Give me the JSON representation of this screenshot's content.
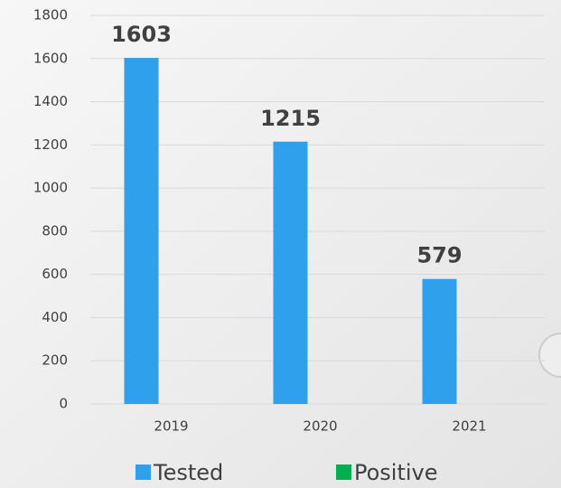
{
  "chart_data": {
    "type": "bar",
    "categories": [
      "2019",
      "2020",
      "2021"
    ],
    "series": [
      {
        "name": "Tested",
        "color": "#2ea0ec",
        "values": [
          1603,
          1215,
          579
        ]
      },
      {
        "name": "Positive",
        "color": "#00b050",
        "values": [
          0,
          0,
          0
        ]
      }
    ],
    "ylim": [
      0,
      1800
    ],
    "yticks": [
      0,
      200,
      400,
      600,
      800,
      1000,
      1200,
      1400,
      1600,
      1800
    ],
    "grid": true,
    "legend": "bottom"
  }
}
